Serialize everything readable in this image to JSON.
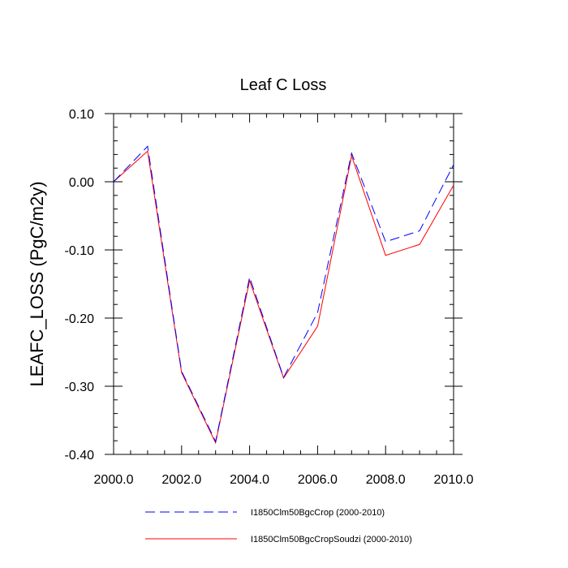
{
  "chart_data": {
    "type": "line",
    "title": "Leaf C Loss",
    "xlabel": "",
    "ylabel": "LEAFC_LOSS  (PgC/m2y)",
    "xlim": [
      2000,
      2010
    ],
    "ylim": [
      -0.4,
      0.1
    ],
    "x_ticks": [
      2000,
      2002,
      2004,
      2006,
      2008,
      2010
    ],
    "x_tick_labels": [
      "2000.0",
      "2002.0",
      "2004.0",
      "2006.0",
      "2008.0",
      "2010.0"
    ],
    "y_ticks": [
      0.1,
      0.0,
      -0.1,
      -0.2,
      -0.3,
      -0.4
    ],
    "y_tick_labels": [
      "0.10",
      "0.00",
      "-0.10",
      "-0.20",
      "-0.30",
      "-0.40"
    ],
    "grid": false,
    "legend_position": "bottom",
    "x": [
      2000,
      2001,
      2002,
      2003,
      2004,
      2005,
      2006,
      2007,
      2008,
      2009,
      2010
    ],
    "series": [
      {
        "name": "I1850Clm50BgcCrop (2000-2010)",
        "color": "#0000ff",
        "dash": "dashed",
        "values": [
          0.0,
          0.052,
          -0.278,
          -0.381,
          -0.14,
          -0.287,
          -0.192,
          0.042,
          -0.088,
          -0.072,
          0.025
        ]
      },
      {
        "name": "I1850Clm50BgcCropSoudzi (2000-2010)",
        "color": "#ff0000",
        "dash": "solid",
        "values": [
          0.0,
          0.045,
          -0.28,
          -0.383,
          -0.145,
          -0.288,
          -0.212,
          0.038,
          -0.108,
          -0.092,
          -0.005
        ]
      }
    ]
  }
}
